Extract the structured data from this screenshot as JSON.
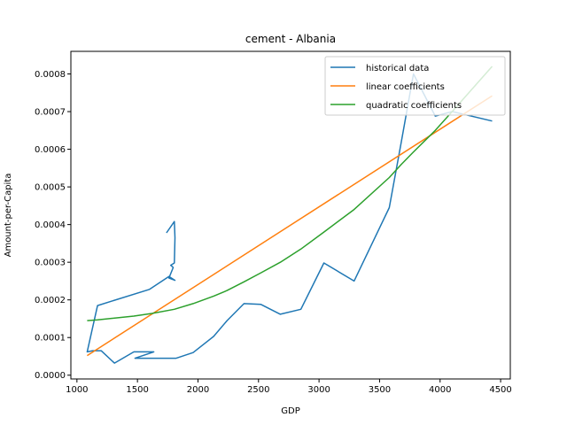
{
  "chart_data": {
    "type": "line",
    "title": "cement - Albania",
    "xlabel": "GDP",
    "ylabel": "Amount-per-Capita",
    "xlim": [
      950,
      4580
    ],
    "ylim": [
      -1e-05,
      0.00086
    ],
    "xticks": [
      1000,
      1500,
      2000,
      2500,
      3000,
      3500,
      4000,
      4500
    ],
    "xtick_labels": [
      "1000",
      "1500",
      "2000",
      "2500",
      "3000",
      "3500",
      "4000",
      "4500"
    ],
    "yticks": [
      0.0,
      0.0001,
      0.0002,
      0.0003,
      0.0004,
      0.0005,
      0.0006,
      0.0007,
      0.0008
    ],
    "ytick_labels": [
      "0.0000",
      "0.0001",
      "0.0002",
      "0.0003",
      "0.0004",
      "0.0005",
      "0.0006",
      "0.0007",
      "0.0008"
    ],
    "legend_position": "top-right",
    "grid": false,
    "series": [
      {
        "name": "historical data",
        "color": "#1f77b4",
        "x": [
          1740,
          1805,
          1810,
          1805,
          1775,
          1795,
          1760,
          1810,
          1760,
          1600,
          1170,
          1085,
          1130,
          1200,
          1310,
          1470,
          1635,
          1480,
          1620,
          1820,
          1960,
          2130,
          2240,
          2380,
          2520,
          2680,
          2850,
          3040,
          3290,
          3580,
          3680,
          3780,
          3960,
          4100,
          4430
        ],
        "y": [
          0.000378,
          0.000408,
          0.000365,
          0.000298,
          0.000292,
          0.000286,
          0.000258,
          0.000252,
          0.000262,
          0.000228,
          0.000185,
          6.2e-05,
          6.5e-05,
          6.5e-05,
          3.2e-05,
          6.2e-05,
          6.2e-05,
          4.5e-05,
          4.5e-05,
          4.5e-05,
          6e-05,
          0.000103,
          0.000145,
          0.00019,
          0.000188,
          0.000162,
          0.000175,
          0.000298,
          0.00025,
          0.000445,
          0.00062,
          0.0008,
          0.000688,
          0.0007,
          0.000675
        ]
      },
      {
        "name": "linear coefficients",
        "color": "#ff7f0e",
        "x": [
          1085,
          4430
        ],
        "y": [
          5.2e-05,
          0.000742
        ]
      },
      {
        "name": "quadratic coefficients",
        "color": "#2ca02c",
        "x": [
          1085,
          1170,
          1470,
          1620,
          1805,
          1960,
          2130,
          2240,
          2380,
          2520,
          2680,
          2850,
          3040,
          3290,
          3580,
          3680,
          3780,
          3960,
          4100,
          4430
        ],
        "y": [
          0.000145,
          0.000147,
          0.000157,
          0.000164,
          0.000175,
          0.00019,
          0.00021,
          0.000225,
          0.000248,
          0.000272,
          0.0003,
          0.000335,
          0.00038,
          0.00044,
          0.000525,
          0.00056,
          0.000593,
          0.00065,
          0.0007,
          0.00082
        ]
      }
    ]
  }
}
